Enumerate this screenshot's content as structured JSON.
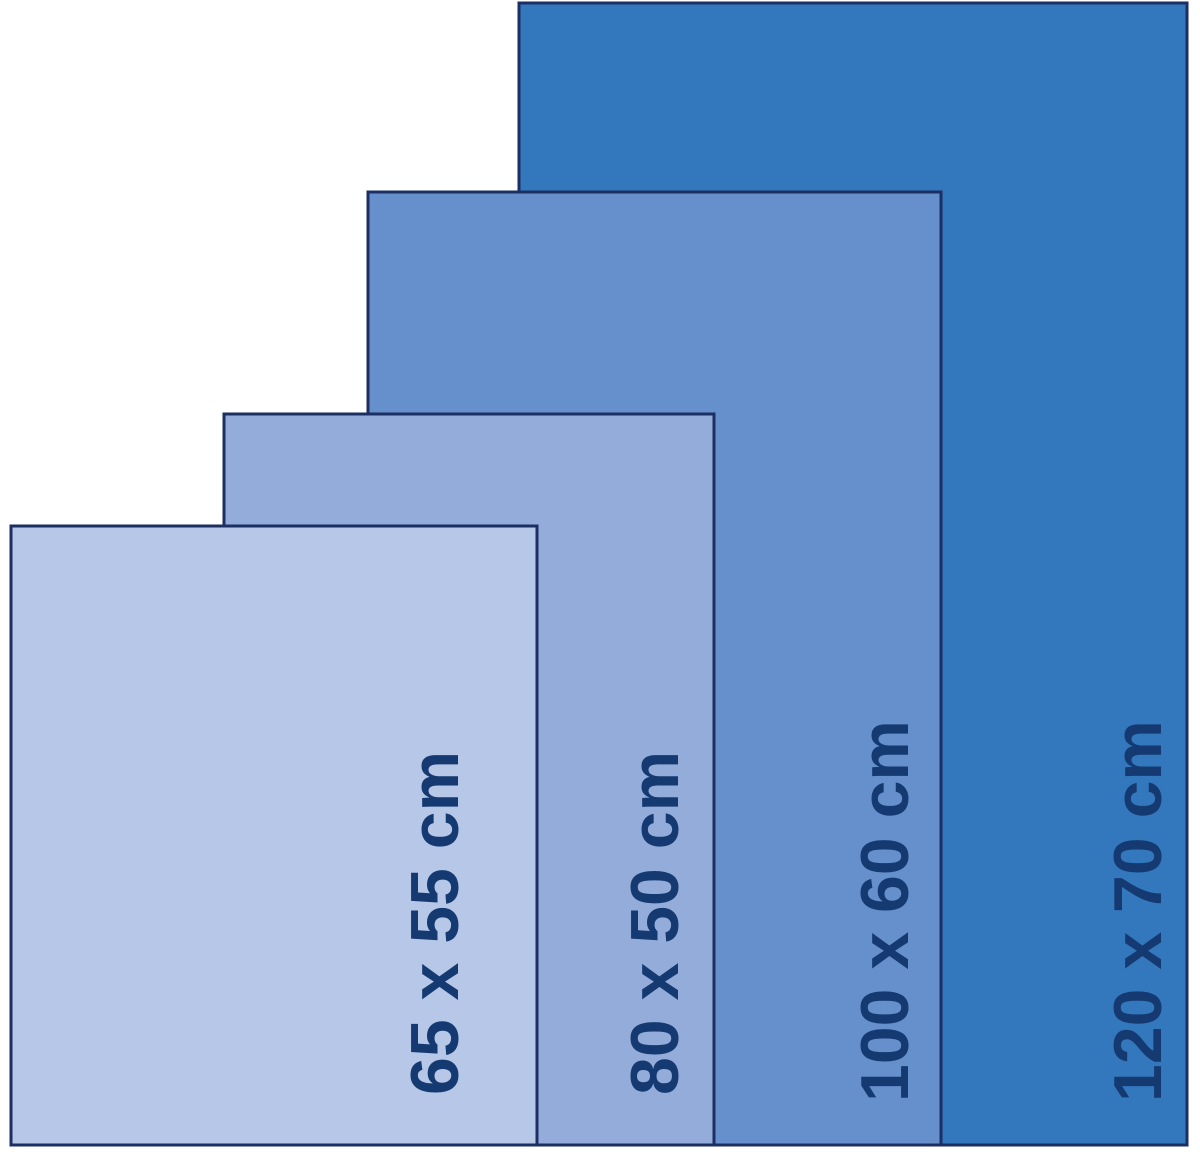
{
  "sizes": [
    {
      "label": "65 x 55 cm"
    },
    {
      "label": "80 x 50 cm"
    },
    {
      "label": "100 x 60 cm"
    },
    {
      "label": "120 x 70 cm"
    }
  ]
}
